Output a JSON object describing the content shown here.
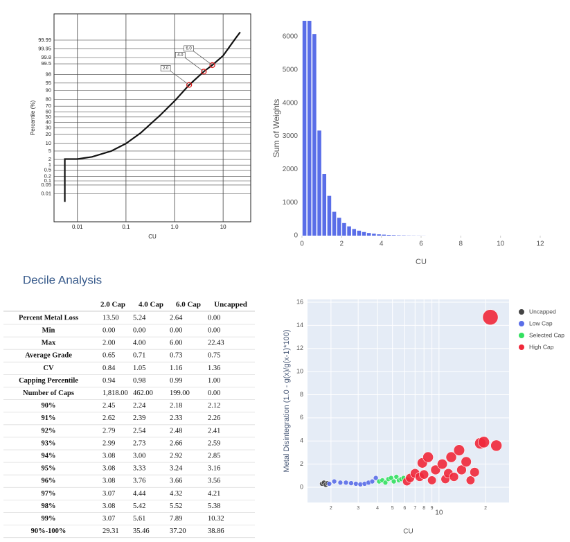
{
  "chart_data": [
    {
      "type": "probability",
      "xlabel": "CU",
      "ylabel": "Percentile (%)",
      "xscale": "log",
      "yscale": "probability",
      "grid": true,
      "color": "#111111",
      "xlim": [
        0.0033,
        37
      ],
      "ylim": [
        2e-05,
        99.99997
      ],
      "xticks": [
        0.01,
        0.1,
        {
          "value": 1,
          "label": "1.0"
        },
        10
      ],
      "yticks": [
        0.01,
        0.05,
        0.1,
        0.2,
        0.5,
        1,
        2,
        5,
        10,
        20,
        30,
        40,
        50,
        60,
        70,
        80,
        90,
        95,
        98,
        99.5,
        99.8,
        99.95,
        99.99
      ],
      "x": [
        0.0055,
        0.0055,
        0.0055,
        0.01,
        0.02,
        0.05,
        0.1,
        0.2,
        0.5,
        1,
        2,
        4,
        6,
        10,
        18,
        22.43
      ],
      "values": [
        0.002,
        0.05,
        2.1,
        2.1,
        2.7,
        5,
        10,
        22,
        53,
        78,
        94,
        98.6,
        99.4,
        99.85,
        99.993,
        99.998
      ],
      "markers": {
        "color": "#e02020",
        "x": [
          2,
          4,
          6
        ],
        "y": [
          94,
          98.6,
          99.4
        ],
        "labels": [
          "2.0",
          "4.0",
          "6.0"
        ]
      }
    },
    {
      "type": "histogram",
      "xlabel": "CU",
      "ylabel": "Sum of Weights",
      "color": "#5a6ee8",
      "xlim": [
        0,
        12
      ],
      "ylim": [
        0,
        6480
      ],
      "xticks": [
        0,
        2,
        4,
        6,
        8,
        10,
        12
      ],
      "yticks": [
        0,
        1000,
        2000,
        3000,
        4000,
        5000,
        6000
      ],
      "bins": [
        0,
        0.25,
        0.5,
        0.75,
        1,
        1.25,
        1.5,
        1.75,
        2,
        2.25,
        2.5,
        2.75,
        3,
        3.25,
        3.5,
        3.75,
        4,
        4.25,
        4.5,
        4.75,
        5,
        5.25,
        5.5,
        5.75,
        6,
        6.25
      ],
      "values": [
        6480,
        6480,
        6080,
        3170,
        1860,
        1200,
        720,
        540,
        380,
        280,
        200,
        150,
        110,
        80,
        60,
        40,
        30,
        20,
        15,
        10,
        8,
        5,
        4,
        3,
        2
      ]
    },
    {
      "type": "scatter",
      "xlabel": "CU",
      "ylabel": "Metal Disintegration (1.0 - g(x)/g(x-1)*100)",
      "xscale": "log",
      "grid": true,
      "legend": "right",
      "xlim": [
        1.41,
        28.4
      ],
      "ylim": [
        -1.32,
        16.24
      ],
      "xticks": [
        2,
        3,
        4,
        5,
        6,
        7,
        8,
        9,
        10,
        {
          "value": 20,
          "label": "2"
        }
      ],
      "yticks": [
        0,
        2,
        4,
        6,
        8,
        10,
        12,
        14,
        16
      ],
      "series": [
        {
          "name": "Uncapped",
          "color": "#444444",
          "x": [
            1.75,
            1.8,
            1.85,
            1.9
          ],
          "values": [
            0.3,
            0.4,
            0.2,
            0.35
          ]
        },
        {
          "name": "Low Cap",
          "color": "#5a6ee8",
          "x": [
            1.95,
            2.1,
            2.3,
            2.5,
            2.7,
            2.9,
            3.1,
            3.3,
            3.5,
            3.7,
            3.9
          ],
          "values": [
            0.3,
            0.5,
            0.4,
            0.4,
            0.35,
            0.3,
            0.25,
            0.3,
            0.4,
            0.5,
            0.8
          ]
        },
        {
          "name": "Selected Cap",
          "color": "#33e060",
          "x": [
            4.1,
            4.3,
            4.5,
            4.7,
            4.9,
            5.1,
            5.3,
            5.5,
            5.7,
            5.9
          ],
          "values": [
            0.5,
            0.6,
            0.4,
            0.7,
            0.8,
            0.5,
            0.9,
            0.6,
            0.7,
            0.8
          ]
        },
        {
          "name": "High Cap",
          "color": "#f0283a",
          "x": [
            6.2,
            6.5,
            7,
            7.5,
            7.8,
            8,
            8.5,
            9,
            9.5,
            10.5,
            11,
            11.5,
            12,
            12.5,
            13.5,
            14,
            15,
            16,
            17,
            18.5,
            19.5,
            21.5,
            23.5
          ],
          "values": [
            0.5,
            0.8,
            1.2,
            0.9,
            2.1,
            1.1,
            2.6,
            0.6,
            1.5,
            2.0,
            0.7,
            1.2,
            2.6,
            0.9,
            3.2,
            1.5,
            2.2,
            0.6,
            1.3,
            3.8,
            3.9,
            14.7,
            3.6
          ]
        }
      ]
    }
  ],
  "heading": "Decile Analysis",
  "table": {
    "columns": [
      "2.0 Cap",
      "4.0 Cap",
      "6.0 Cap",
      "Uncapped"
    ],
    "rows": [
      [
        "Percent Metal Loss",
        "13.50",
        "5.24",
        "2.64",
        "0.00"
      ],
      [
        "Min",
        "0.00",
        "0.00",
        "0.00",
        "0.00"
      ],
      [
        "Max",
        "2.00",
        "4.00",
        "6.00",
        "22.43"
      ],
      [
        "Average Grade",
        "0.65",
        "0.71",
        "0.73",
        "0.75"
      ],
      [
        "CV",
        "0.84",
        "1.05",
        "1.16",
        "1.36"
      ],
      [
        "Capping Percentile",
        "0.94",
        "0.98",
        "0.99",
        "1.00"
      ],
      [
        "Number of Caps",
        "1,818.00",
        "462.00",
        "199.00",
        "0.00"
      ],
      [
        "90%",
        "2.45",
        "2.24",
        "2.18",
        "2.12"
      ],
      [
        "91%",
        "2.62",
        "2.39",
        "2.33",
        "2.26"
      ],
      [
        "92%",
        "2.79",
        "2.54",
        "2.48",
        "2.41"
      ],
      [
        "93%",
        "2.99",
        "2.73",
        "2.66",
        "2.59"
      ],
      [
        "94%",
        "3.08",
        "3.00",
        "2.92",
        "2.85"
      ],
      [
        "95%",
        "3.08",
        "3.33",
        "3.24",
        "3.16"
      ],
      [
        "96%",
        "3.08",
        "3.76",
        "3.66",
        "3.56"
      ],
      [
        "97%",
        "3.07",
        "4.44",
        "4.32",
        "4.21"
      ],
      [
        "98%",
        "3.08",
        "5.42",
        "5.52",
        "5.38"
      ],
      [
        "99%",
        "3.07",
        "5.61",
        "7.89",
        "10.32"
      ],
      [
        "90%-100%",
        "29.31",
        "35.46",
        "37.20",
        "38.86"
      ]
    ]
  }
}
